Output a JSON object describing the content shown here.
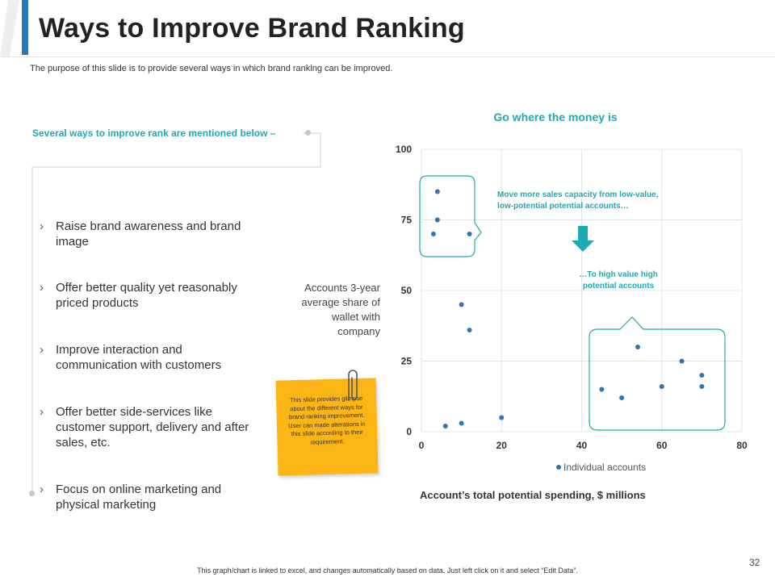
{
  "slide": {
    "title": "Ways to Improve Brand Ranking",
    "subtitle": "The purpose of this slide is to provide several ways in which brand ranking can be improved.",
    "section_heading": "Several ways to improve rank are mentioned below –",
    "bullets": [
      "Raise brand awareness and brand image",
      "Offer better quality yet reasonably priced products",
      "Improve interaction and communication with customers",
      "Offer better side-services like customer support, delivery and after sales, etc.",
      "Focus on online marketing and physical marketing"
    ],
    "bullet_glyph": "›",
    "sticky_note": "This slide provides glimpse about the different ways for brand ranking improvement. User can made alterations in this slide according to their requirement.",
    "page_number": "32",
    "footer": "This graph/chart is linked to excel, and changes automatically based on data. Just left click on it and select “Edit Data”."
  },
  "colors": {
    "accent": "#1ea9b3",
    "title_bar": "#2e75b6",
    "point": "#2e75b6",
    "sticky": "#fbb515"
  },
  "chart_data": {
    "type": "scatter",
    "title": "Go where the money is",
    "xlabel": "Account’s  total potential spending, $ millions",
    "ylabel": "Accounts 3-year average share of wallet with company",
    "xlim": [
      0,
      80
    ],
    "ylim": [
      0,
      100
    ],
    "xticks": [
      0,
      20,
      40,
      60,
      80
    ],
    "yticks": [
      0,
      25,
      50,
      75,
      100
    ],
    "grid": true,
    "legend": "bottom",
    "series": [
      {
        "name": "Individual accounts",
        "points": [
          [
            4,
            85
          ],
          [
            4,
            75
          ],
          [
            3,
            70
          ],
          [
            12,
            70
          ],
          [
            10,
            45
          ],
          [
            12,
            36
          ],
          [
            6,
            2
          ],
          [
            10,
            3
          ],
          [
            20,
            5
          ],
          [
            45,
            15
          ],
          [
            50,
            12
          ],
          [
            54,
            30
          ],
          [
            60,
            16
          ],
          [
            65,
            25
          ],
          [
            70,
            20
          ],
          [
            70,
            16
          ]
        ]
      }
    ],
    "annotations": {
      "top": "Move more sales capacity from low-value, low-potential potential accounts…",
      "bottom": "…To high value high potential accounts"
    }
  }
}
